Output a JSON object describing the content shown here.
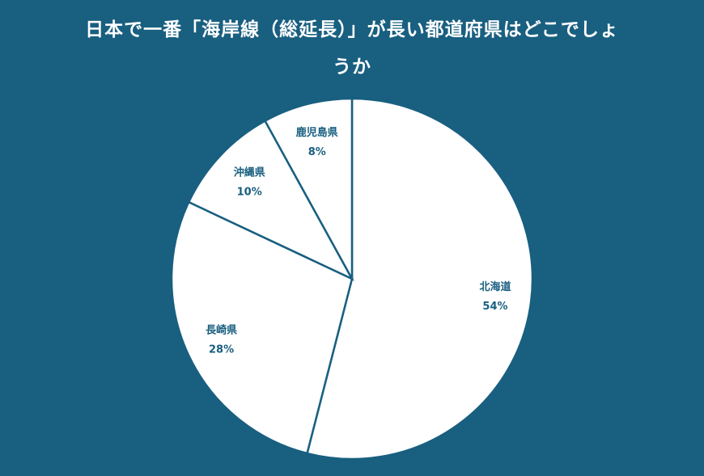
{
  "chart_data": {
    "type": "pie",
    "title": "日本で一番「海岸線（総延長）」が長い都道府県はどこでしょうか",
    "categories": [
      "北海道",
      "長崎県",
      "沖縄県",
      "鹿児島県"
    ],
    "values": [
      54,
      28,
      10,
      8
    ],
    "value_labels": [
      "54%",
      "28%",
      "10%",
      "8%"
    ],
    "color": "#ffffff"
  }
}
